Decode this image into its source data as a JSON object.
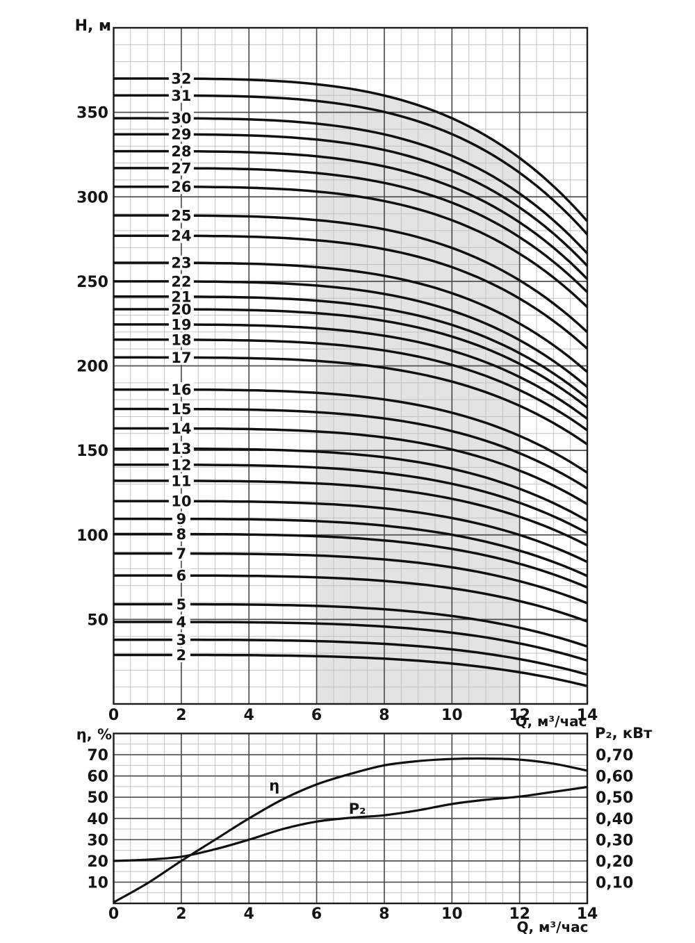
{
  "colors": {
    "background": "#ffffff",
    "curve": "#101010",
    "grid_major": "#4f4f4f",
    "grid_minor": "#c2c2c2",
    "frame": "#1b1b1b",
    "shade": "#e3e3e3",
    "text": "#141414"
  },
  "chart_data": [
    {
      "type": "line",
      "id": "head-curves",
      "ylabel": "H, м",
      "xlabel": "Q, м³/час",
      "xlim": [
        0,
        14
      ],
      "ylim": [
        0,
        400
      ],
      "x_ticks": [
        "0",
        "2",
        "4",
        "6",
        "8",
        "10",
        "12",
        "14"
      ],
      "x_tick_values": [
        0,
        2,
        4,
        6,
        8,
        10,
        12,
        14
      ],
      "y_ticks": [
        50,
        100,
        150,
        200,
        250,
        300,
        350
      ],
      "x_minor_step": 0.5,
      "y_minor_step": 10,
      "grid": true,
      "legend": "curve labels = number of pump stages",
      "working_range_shade": {
        "q_from": 6,
        "q_to": 12
      },
      "curve_label_q": 2,
      "droop_exponent": 3.8,
      "curves": [
        {
          "stages": 2,
          "shutoff_head_m": 29,
          "head_at_q14_m": 10.6
        },
        {
          "stages": 3,
          "shutoff_head_m": 38,
          "head_at_q14_m": 17.4
        },
        {
          "stages": 4,
          "shutoff_head_m": 48.5,
          "head_at_q14_m": 25.7
        },
        {
          "stages": 5,
          "shutoff_head_m": 59,
          "head_at_q14_m": 34
        },
        {
          "stages": 6,
          "shutoff_head_m": 76,
          "head_at_q14_m": 48.8
        },
        {
          "stages": 7,
          "shutoff_head_m": 89,
          "head_at_q14_m": 59.6
        },
        {
          "stages": 8,
          "shutoff_head_m": 100.5,
          "head_at_q14_m": 68.9
        },
        {
          "stages": 9,
          "shutoff_head_m": 109.5,
          "head_at_q14_m": 75.7
        },
        {
          "stages": 10,
          "shutoff_head_m": 120,
          "head_at_q14_m": 84
        },
        {
          "stages": 11,
          "shutoff_head_m": 132,
          "head_at_q14_m": 93.8
        },
        {
          "stages": 12,
          "shutoff_head_m": 141.5,
          "head_at_q14_m": 101.1
        },
        {
          "stages": 13,
          "shutoff_head_m": 151,
          "head_at_q14_m": 108.4
        },
        {
          "stages": 14,
          "shutoff_head_m": 163,
          "head_at_q14_m": 118.2
        },
        {
          "stages": 15,
          "shutoff_head_m": 174.5,
          "head_at_q14_m": 127.5
        },
        {
          "stages": 16,
          "shutoff_head_m": 186,
          "head_at_q14_m": 136.8
        },
        {
          "stages": 17,
          "shutoff_head_m": 205,
          "head_at_q14_m": 153.6
        },
        {
          "stages": 18,
          "shutoff_head_m": 215.5,
          "head_at_q14_m": 161.9
        },
        {
          "stages": 19,
          "shutoff_head_m": 224.5,
          "head_at_q14_m": 168.7
        },
        {
          "stages": 20,
          "shutoff_head_m": 233.5,
          "head_at_q14_m": 175.5
        },
        {
          "stages": 21,
          "shutoff_head_m": 241,
          "head_at_q14_m": 180.8
        },
        {
          "stages": 22,
          "shutoff_head_m": 250,
          "head_at_q14_m": 187.6
        },
        {
          "stages": 23,
          "shutoff_head_m": 261,
          "head_at_q14_m": 196.4
        },
        {
          "stages": 24,
          "shutoff_head_m": 277,
          "head_at_q14_m": 210.2
        },
        {
          "stages": 25,
          "shutoff_head_m": 289,
          "head_at_q14_m": 220
        },
        {
          "stages": 26,
          "shutoff_head_m": 306,
          "head_at_q14_m": 234.8
        },
        {
          "stages": 27,
          "shutoff_head_m": 317,
          "head_at_q14_m": 243.6
        },
        {
          "stages": 28,
          "shutoff_head_m": 327,
          "head_at_q14_m": 251.4
        },
        {
          "stages": 29,
          "shutoff_head_m": 337,
          "head_at_q14_m": 259.2
        },
        {
          "stages": 30,
          "shutoff_head_m": 346.5,
          "head_at_q14_m": 266.5
        },
        {
          "stages": 31,
          "shutoff_head_m": 360,
          "head_at_q14_m": 277.8
        },
        {
          "stages": 32,
          "shutoff_head_m": 370,
          "head_at_q14_m": 285.6
        }
      ]
    },
    {
      "type": "line",
      "id": "efficiency-power",
      "ylabel_left": "η, %",
      "ylabel_right": "P₂, кВт",
      "xlabel": "Q, м³/час",
      "xlim": [
        0,
        14
      ],
      "ylim_left": [
        0,
        80
      ],
      "ylim_right": [
        0,
        0.8
      ],
      "x_ticks": [
        "0",
        "2",
        "4",
        "6",
        "8",
        "10",
        "12",
        "14"
      ],
      "x_tick_values": [
        0,
        2,
        4,
        6,
        8,
        10,
        12,
        14
      ],
      "y_ticks_left": [
        10,
        20,
        30,
        40,
        50,
        60,
        70
      ],
      "y_ticks_right": [
        "0,10",
        "0,20",
        "0,30",
        "0,40",
        "0,50",
        "0,60",
        "0,70"
      ],
      "x_minor_step": 0.5,
      "y_minor_step_left": 5,
      "grid": true,
      "series": [
        {
          "name": "eta",
          "label": "η",
          "label_pos": {
            "q": 4.75,
            "v": 55.5
          },
          "axis": "left",
          "x": [
            0,
            1,
            2,
            3,
            4,
            5,
            6,
            7,
            8,
            9,
            10,
            11,
            12,
            13,
            14
          ],
          "y_percent": [
            0.5,
            9.5,
            20,
            30,
            40,
            49,
            56,
            61,
            65,
            67,
            68,
            68.2,
            67.7,
            65.8,
            62.5
          ]
        },
        {
          "name": "P2",
          "label": "P₂",
          "label_pos": {
            "q": 7.2,
            "v": 44.5
          },
          "axis": "right",
          "x": [
            0,
            1,
            2,
            3,
            4,
            5,
            6,
            7,
            8,
            9,
            10,
            11,
            12,
            13,
            14
          ],
          "y_kw": [
            0.2,
            0.206,
            0.22,
            0.255,
            0.3,
            0.35,
            0.385,
            0.403,
            0.415,
            0.438,
            0.468,
            0.488,
            0.503,
            0.525,
            0.548
          ]
        }
      ]
    }
  ]
}
